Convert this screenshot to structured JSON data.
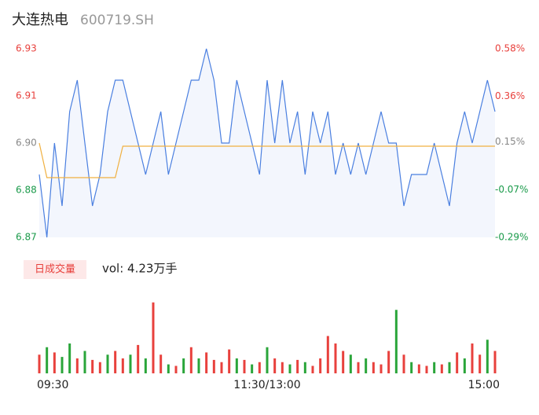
{
  "chart_data": {
    "type": "line",
    "title": "大连热电",
    "subtitle": "600719.SH",
    "x": [
      0,
      4,
      8,
      12,
      16,
      20,
      24,
      28,
      32,
      36,
      40,
      44,
      48,
      52,
      56,
      60,
      64,
      68,
      72,
      76,
      80,
      84,
      88,
      92,
      96,
      100,
      104,
      108,
      112,
      116,
      120,
      124,
      128,
      132,
      136,
      140,
      144,
      148,
      152,
      156,
      160,
      164,
      168,
      172,
      176,
      180,
      184,
      188,
      192,
      196,
      200,
      204,
      208,
      212,
      216,
      220,
      224,
      228,
      232,
      236,
      240
    ],
    "xlim": [
      0,
      240
    ],
    "xticks": [
      {
        "value": 0,
        "label": "09:30"
      },
      {
        "value": 120,
        "label": "11:30/13:00"
      },
      {
        "value": 240,
        "label": "15:00"
      }
    ],
    "ylim": [
      6.87,
      6.93
    ],
    "yticks": [
      {
        "value": 6.87,
        "label": "6.87"
      },
      {
        "value": 6.885,
        "label": "6.88"
      },
      {
        "value": 6.9,
        "label": "6.90"
      },
      {
        "value": 6.915,
        "label": "6.91"
      },
      {
        "value": 6.93,
        "label": "6.93"
      }
    ],
    "y2lim": [
      -0.29,
      0.58
    ],
    "y2ticks": [
      {
        "value": -0.29,
        "label": "-0.29%"
      },
      {
        "value": -0.07,
        "label": "-0.07%"
      },
      {
        "value": 0.15,
        "label": "0.15%"
      },
      {
        "value": 0.36,
        "label": "0.36%"
      },
      {
        "value": 0.58,
        "label": "0.58%"
      }
    ],
    "tick_colors": [
      "#1a9a4a",
      "#1a9a4a",
      "#888888",
      "#e8413d",
      "#e8413d"
    ],
    "series": [
      {
        "color": "#4a7fe0",
        "values": [
          6.89,
          6.87,
          6.9,
          6.88,
          6.91,
          6.92,
          6.9,
          6.88,
          6.89,
          6.91,
          6.92,
          6.92,
          6.91,
          6.9,
          6.89,
          6.9,
          6.91,
          6.89,
          6.9,
          6.91,
          6.92,
          6.92,
          6.93,
          6.92,
          6.9,
          6.9,
          6.92,
          6.91,
          6.9,
          6.89,
          6.92,
          6.9,
          6.92,
          6.9,
          6.91,
          6.89,
          6.91,
          6.9,
          6.91,
          6.89,
          6.9,
          6.89,
          6.9,
          6.89,
          6.9,
          6.91,
          6.9,
          6.9,
          6.88,
          6.89,
          6.89,
          6.89,
          6.9,
          6.89,
          6.88,
          6.9,
          6.91,
          6.9,
          6.91,
          6.92,
          6.91
        ]
      },
      {
        "color": "#f0b040",
        "values": [
          6.9,
          6.889,
          6.889,
          6.889,
          6.889,
          6.889,
          6.889,
          6.889,
          6.889,
          6.889,
          6.889,
          6.899,
          6.899,
          6.899,
          6.899,
          6.899,
          6.899,
          6.899,
          6.899,
          6.899,
          6.899,
          6.899,
          6.899,
          6.899,
          6.899,
          6.899,
          6.899,
          6.899,
          6.899,
          6.899,
          6.899,
          6.899,
          6.899,
          6.899,
          6.899,
          6.899,
          6.899,
          6.899,
          6.899,
          6.899,
          6.899,
          6.899,
          6.899,
          6.899,
          6.899,
          6.899,
          6.899,
          6.899,
          6.899,
          6.899,
          6.899,
          6.899,
          6.899,
          6.899,
          6.899,
          6.899,
          6.899,
          6.899,
          6.899,
          6.899,
          6.899
        ]
      }
    ],
    "volume": {
      "label": "日成交量",
      "text": "vol: 4.23万手",
      "ylim": [
        0,
        100
      ],
      "values": [
        25,
        35,
        28,
        22,
        40,
        20,
        30,
        18,
        15,
        25,
        30,
        20,
        25,
        38,
        20,
        95,
        25,
        12,
        10,
        20,
        35,
        20,
        28,
        18,
        15,
        32,
        20,
        18,
        12,
        15,
        35,
        20,
        15,
        12,
        18,
        15,
        10,
        20,
        50,
        40,
        30,
        25,
        15,
        20,
        15,
        12,
        30,
        85,
        25,
        15,
        12,
        10,
        15,
        12,
        15,
        28,
        20,
        40,
        25,
        45,
        30
      ],
      "colors": [
        "#e8413d",
        "#2aa53a",
        "#e8413d",
        "#2aa53a",
        "#2aa53a",
        "#e8413d",
        "#2aa53a",
        "#e8413d",
        "#e8413d",
        "#2aa53a",
        "#e8413d",
        "#e8413d",
        "#2aa53a",
        "#e8413d",
        "#2aa53a",
        "#e8413d",
        "#e8413d",
        "#2aa53a",
        "#e8413d",
        "#2aa53a",
        "#e8413d",
        "#2aa53a",
        "#e8413d",
        "#e8413d",
        "#e8413d",
        "#e8413d",
        "#2aa53a",
        "#e8413d",
        "#2aa53a",
        "#e8413d",
        "#2aa53a",
        "#e8413d",
        "#e8413d",
        "#2aa53a",
        "#e8413d",
        "#2aa53a",
        "#e8413d",
        "#e8413d",
        "#e8413d",
        "#e8413d",
        "#e8413d",
        "#2aa53a",
        "#e8413d",
        "#2aa53a",
        "#e8413d",
        "#e8413d",
        "#e8413d",
        "#2aa53a",
        "#e8413d",
        "#2aa53a",
        "#e8413d",
        "#e8413d",
        "#2aa53a",
        "#e8413d",
        "#2aa53a",
        "#e8413d",
        "#2aa53a",
        "#e8413d",
        "#e8413d",
        "#2aa53a",
        "#e8413d"
      ]
    }
  }
}
